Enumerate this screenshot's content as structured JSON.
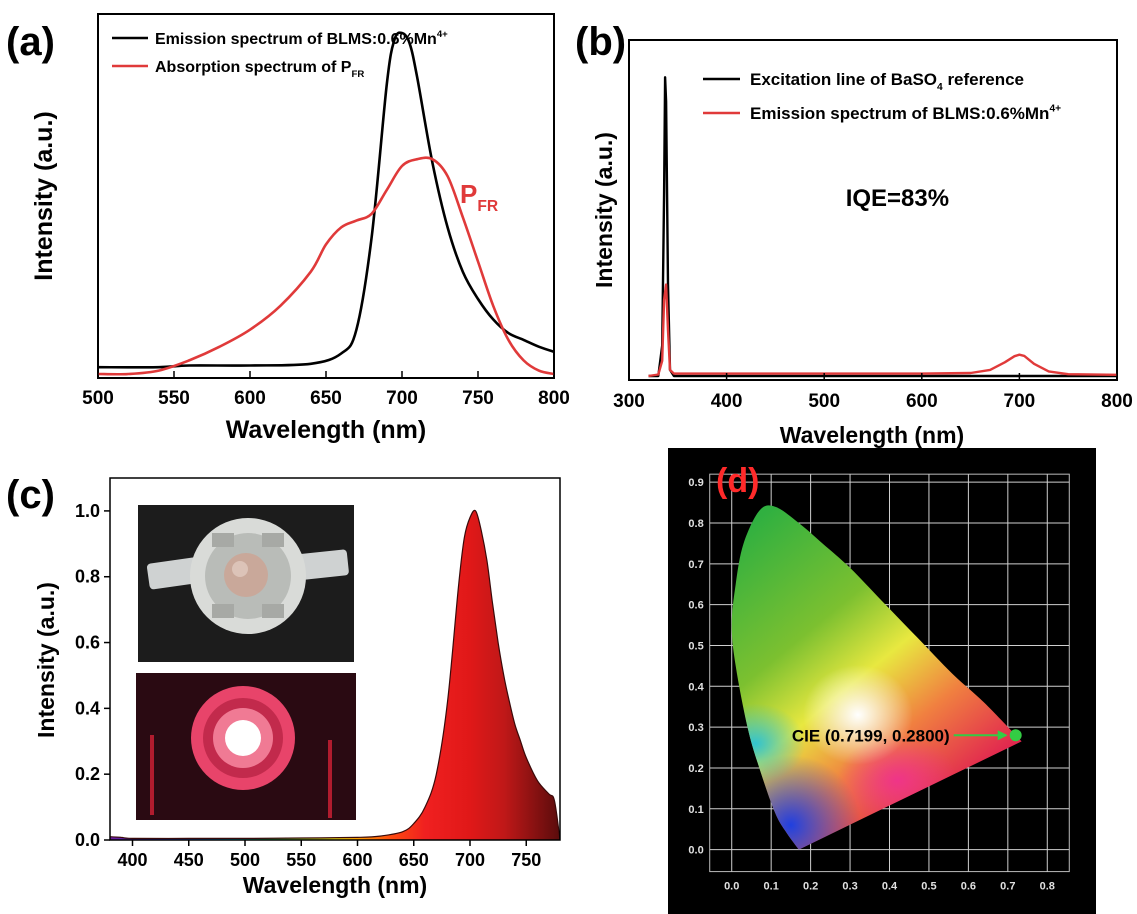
{
  "panels": {
    "a": {
      "label": "(a)"
    },
    "b": {
      "label": "(b)"
    },
    "c": {
      "label": "(c)"
    },
    "d": {
      "label": "(d)"
    }
  },
  "colors": {
    "black": "#000000",
    "red": "#e03a3a",
    "cie_point": "#33cc44",
    "frame_d": "#000000"
  },
  "chart_data": [
    {
      "id": "a",
      "type": "line",
      "xlabel": "Wavelength (nm)",
      "ylabel": "Intensity (a.u.)",
      "xlim": [
        500,
        800
      ],
      "xticks": [
        500,
        550,
        600,
        650,
        700,
        750,
        800
      ],
      "ylim": [
        0,
        1.05
      ],
      "legend": {
        "placement": "top-left",
        "entries": [
          {
            "text": "Emission spectrum of BLMS:0.6%Mn",
            "sup": "4+",
            "color": "#000000"
          },
          {
            "text": "Absorption spectrum of P",
            "sub": "FR",
            "color": "#e03a3a"
          }
        ]
      },
      "annotation": {
        "text": "P",
        "sub": "FR",
        "x": 740,
        "y": 0.6
      },
      "series": [
        {
          "name": "Emission spectrum of BLMS:0.6%Mn4+",
          "color": "#000000",
          "x": [
            500,
            540,
            560,
            600,
            640,
            660,
            670,
            680,
            690,
            695,
            700,
            705,
            710,
            720,
            730,
            740,
            750,
            760,
            770,
            780,
            790,
            800
          ],
          "y": [
            0.02,
            0.02,
            0.025,
            0.025,
            0.03,
            0.06,
            0.13,
            0.4,
            0.85,
            0.98,
            1.0,
            0.97,
            0.87,
            0.62,
            0.43,
            0.3,
            0.22,
            0.16,
            0.12,
            0.1,
            0.08,
            0.065
          ]
        },
        {
          "name": "Absorption spectrum of PFR",
          "color": "#e03a3a",
          "x": [
            500,
            520,
            540,
            560,
            580,
            600,
            620,
            640,
            650,
            660,
            670,
            680,
            690,
            700,
            710,
            720,
            730,
            740,
            750,
            760,
            770,
            780,
            790,
            800
          ],
          "y": [
            0.0,
            0.0,
            0.01,
            0.04,
            0.08,
            0.13,
            0.2,
            0.3,
            0.38,
            0.43,
            0.45,
            0.47,
            0.54,
            0.61,
            0.63,
            0.63,
            0.58,
            0.46,
            0.33,
            0.2,
            0.1,
            0.04,
            0.01,
            0.0
          ]
        }
      ]
    },
    {
      "id": "b",
      "type": "line",
      "xlabel": "Wavelength (nm)",
      "ylabel": "Intensity (a.u.)",
      "xlim": [
        300,
        800
      ],
      "xticks": [
        300,
        400,
        500,
        600,
        700,
        800
      ],
      "ylim": [
        0,
        1.05
      ],
      "legend": {
        "placement": "top-center",
        "entries": [
          {
            "text": "Excitation line of BaSO",
            "sub": "4",
            "after": " reference",
            "color": "#000000"
          },
          {
            "text": "Emission spectrum of BLMS:0.6%Mn",
            "sup": "4+",
            "color": "#e03a3a"
          }
        ]
      },
      "annotation": {
        "text": "IQE=83%",
        "x": 575,
        "y": 0.58
      },
      "series": [
        {
          "name": "Excitation line of BaSO4 reference",
          "color": "#000000",
          "x": [
            320,
            330,
            334,
            336,
            337,
            338,
            340,
            342,
            346,
            800
          ],
          "y": [
            0.0,
            0.0,
            0.1,
            0.6,
            0.98,
            0.9,
            0.3,
            0.02,
            0.0,
            0.0
          ]
        },
        {
          "name": "Emission spectrum of BLMS:0.6%Mn4+",
          "color": "#e03a3a",
          "x": [
            320,
            330,
            334,
            336,
            338,
            340,
            342,
            346,
            400,
            500,
            600,
            650,
            670,
            685,
            695,
            700,
            705,
            715,
            730,
            750,
            800
          ],
          "y": [
            0.0,
            0.005,
            0.05,
            0.25,
            0.3,
            0.15,
            0.02,
            0.008,
            0.008,
            0.008,
            0.008,
            0.01,
            0.02,
            0.045,
            0.065,
            0.07,
            0.066,
            0.04,
            0.015,
            0.006,
            0.004
          ]
        }
      ]
    },
    {
      "id": "c",
      "type": "area",
      "xlabel": "Wavelength (nm)",
      "ylabel": "Intensity (a.u.)",
      "xlim": [
        380,
        780
      ],
      "xticks": [
        400,
        450,
        500,
        550,
        600,
        650,
        700,
        750
      ],
      "ylim": [
        0,
        1.1
      ],
      "yticks": [
        "0.0",
        "0.2",
        "0.4",
        "0.6",
        "0.8",
        "1.0"
      ],
      "series": [
        {
          "name": "",
          "color": "#000000",
          "x": [
            380,
            390,
            400,
            450,
            500,
            550,
            600,
            620,
            640,
            650,
            660,
            670,
            680,
            690,
            695,
            700,
            705,
            710,
            715,
            720,
            725,
            730,
            735,
            740,
            745,
            750,
            760,
            770,
            775,
            780
          ],
          "y": [
            0.01,
            0.008,
            0.005,
            0.005,
            0.005,
            0.006,
            0.008,
            0.012,
            0.025,
            0.05,
            0.1,
            0.2,
            0.42,
            0.78,
            0.92,
            0.98,
            1.0,
            0.94,
            0.85,
            0.72,
            0.6,
            0.5,
            0.42,
            0.35,
            0.3,
            0.25,
            0.18,
            0.14,
            0.12,
            0.0
          ]
        }
      ]
    },
    {
      "id": "d",
      "type": "scatter",
      "xlim": [
        -0.05,
        0.85
      ],
      "ylim": [
        -0.05,
        0.92
      ],
      "xticks": [
        "0.0",
        "0.1",
        "0.2",
        "0.3",
        "0.4",
        "0.5",
        "0.6",
        "0.7",
        "0.8"
      ],
      "yticks": [
        "0.0",
        "0.1",
        "0.2",
        "0.3",
        "0.4",
        "0.5",
        "0.6",
        "0.7",
        "0.8",
        "0.9"
      ],
      "grid": true,
      "annotation": {
        "text": "CIE (0.7199, 0.2800)"
      },
      "points": [
        {
          "x": 0.7199,
          "y": 0.28
        }
      ]
    }
  ]
}
